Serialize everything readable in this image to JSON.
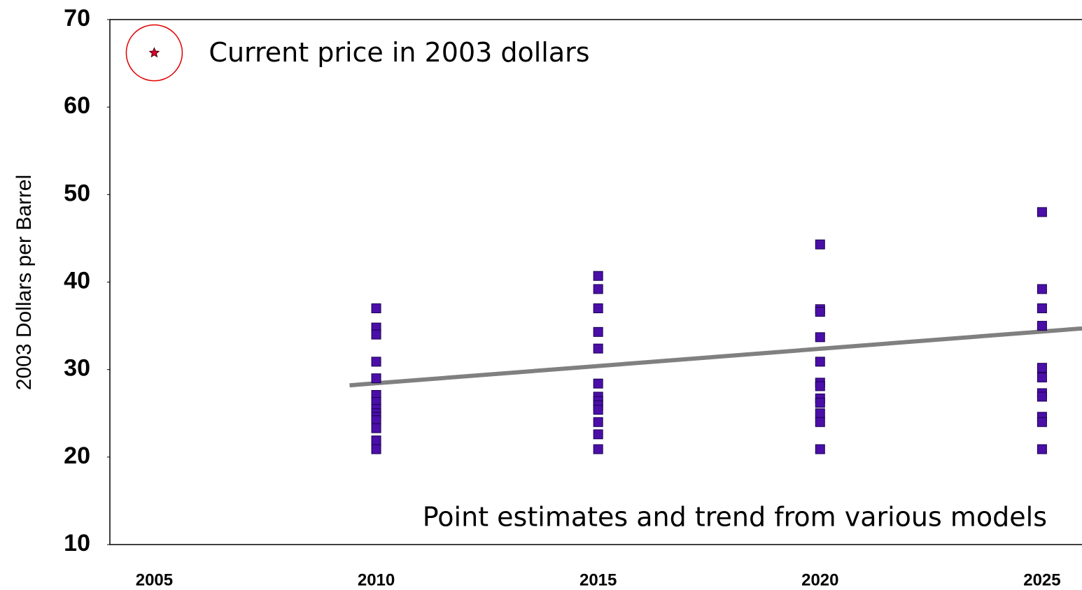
{
  "chart_data": {
    "type": "scatter",
    "y_label": "2003 Dollars per Barrel",
    "annotation": "Point estimates and trend from various models",
    "xlim": [
      2004,
      2025.9
    ],
    "ylim": [
      10,
      70
    ],
    "xticks": [
      2005,
      2010,
      2015,
      2020,
      2025
    ],
    "yticks": [
      10,
      20,
      30,
      40,
      50,
      60,
      70
    ],
    "grid": false,
    "series": [
      {
        "color": "#4b0fa8",
        "marker": "square",
        "x": [
          2010,
          2010,
          2010,
          2010,
          2010,
          2010,
          2010,
          2010,
          2010,
          2010,
          2010,
          2010,
          2010,
          2010,
          2015,
          2015,
          2015,
          2015,
          2015,
          2015,
          2015,
          2015,
          2015,
          2015,
          2015,
          2015,
          2015,
          2020,
          2020,
          2020,
          2020,
          2020,
          2020,
          2020,
          2020,
          2020,
          2020,
          2020,
          2020,
          2025,
          2025,
          2025,
          2025,
          2025,
          2025,
          2025,
          2025,
          2025,
          2025,
          2025
        ],
        "values": [
          37.0,
          34.8,
          34.0,
          30.9,
          29.0,
          27.1,
          26.3,
          25.5,
          25.0,
          24.6,
          24.2,
          23.3,
          21.9,
          20.9,
          40.7,
          39.2,
          37.0,
          34.3,
          32.4,
          28.4,
          26.9,
          26.4,
          25.9,
          25.4,
          24.0,
          22.6,
          20.9,
          44.3,
          36.9,
          36.6,
          33.7,
          30.9,
          28.5,
          28.1,
          26.7,
          26.2,
          25.0,
          24.0,
          20.9,
          48.0,
          39.2,
          37.0,
          35.0,
          30.2,
          29.1,
          27.3,
          26.9,
          24.6,
          24.0,
          20.9
        ]
      },
      {
        "name": "Current price in 2003 dollars",
        "color": "#e00030",
        "marker": "star",
        "x": [
          2005
        ],
        "values": [
          66.2
        ]
      }
    ],
    "trend": {
      "color": "#808080",
      "x": [
        2009.4,
        2025.9
      ],
      "values": [
        28.2,
        34.7
      ]
    }
  }
}
